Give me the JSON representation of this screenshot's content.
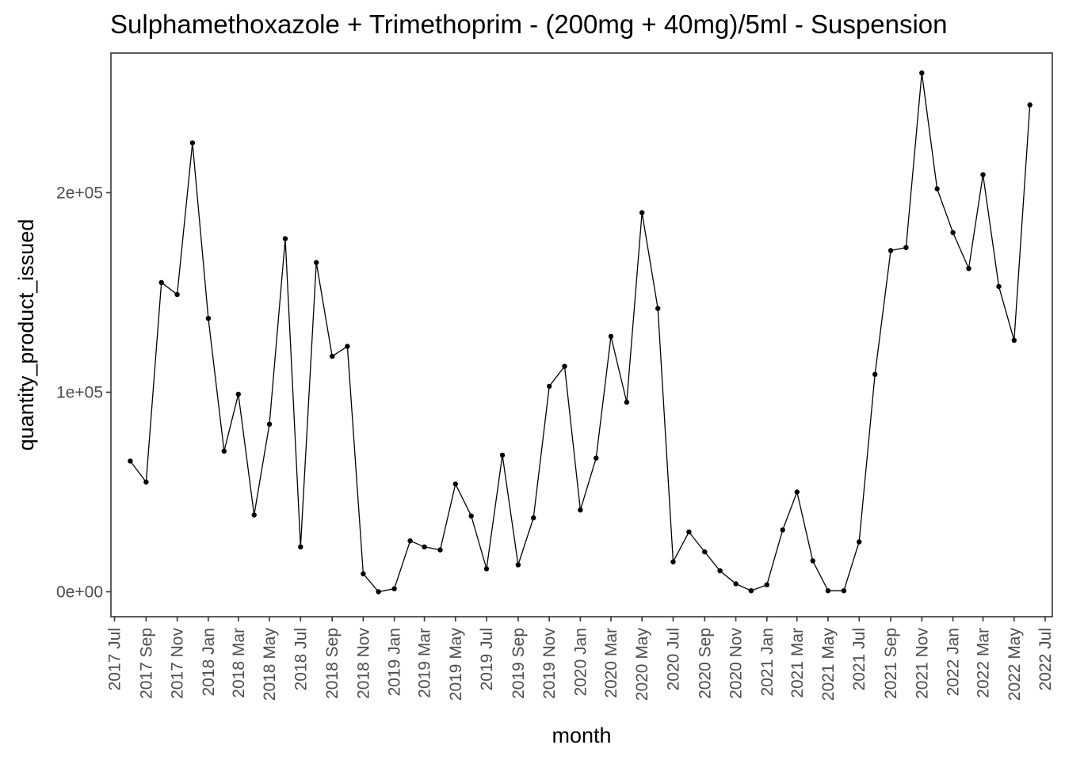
{
  "chart_data": {
    "type": "line",
    "title": "Sulphamethoxazole + Trimethoprim - (200mg + 40mg)/5ml - Suspension",
    "xlabel": "month",
    "ylabel": "quantity_product_issued",
    "grid": false,
    "legend": "none",
    "colors": {
      "line": "#000000",
      "point": "#000000",
      "axis": "#333333",
      "tick_text": "#4d4d4d",
      "panel_border": "#333333"
    },
    "x_tick_labels": [
      "2017 Jul",
      "2017 Sep",
      "2017 Nov",
      "2018 Jan",
      "2018 Mar",
      "2018 May",
      "2018 Jul",
      "2018 Sep",
      "2018 Nov",
      "2019 Jan",
      "2019 Mar",
      "2019 May",
      "2019 Jul",
      "2019 Sep",
      "2019 Nov",
      "2020 Jan",
      "2020 Mar",
      "2020 May",
      "2020 Jul",
      "2020 Sep",
      "2020 Nov",
      "2021 Jan",
      "2021 Mar",
      "2021 May",
      "2021 Jul",
      "2021 Sep",
      "2021 Nov",
      "2022 Jan",
      "2022 Mar",
      "2022 May",
      "2022 Jul"
    ],
    "y_ticks": [
      {
        "value": 0,
        "label": "0e+00"
      },
      {
        "value": 100000,
        "label": "1e+05"
      },
      {
        "value": 200000,
        "label": "2e+05"
      }
    ],
    "ylim": [
      -12500,
      270000
    ],
    "xlim": [
      "2017-06-24",
      "2022-07-15"
    ],
    "series": [
      {
        "x": [
          "2017-08-01",
          "2017-09-01",
          "2017-10-01",
          "2017-11-01",
          "2017-12-01",
          "2018-01-01",
          "2018-02-01",
          "2018-03-01",
          "2018-04-01",
          "2018-05-01",
          "2018-06-01",
          "2018-07-01",
          "2018-08-01",
          "2018-09-01",
          "2018-10-01",
          "2018-11-01",
          "2018-12-01",
          "2019-01-01",
          "2019-02-01",
          "2019-03-01",
          "2019-04-01",
          "2019-05-01",
          "2019-06-01",
          "2019-07-01",
          "2019-08-01",
          "2019-09-01",
          "2019-10-01",
          "2019-11-01",
          "2019-12-01",
          "2020-01-01",
          "2020-02-01",
          "2020-03-01",
          "2020-04-01",
          "2020-05-01",
          "2020-06-01",
          "2020-07-01",
          "2020-08-01",
          "2020-09-01",
          "2020-10-01",
          "2020-11-01",
          "2020-12-01",
          "2021-01-01",
          "2021-02-01",
          "2021-03-01",
          "2021-04-01",
          "2021-05-01",
          "2021-06-01",
          "2021-07-01",
          "2021-08-01",
          "2021-09-01",
          "2021-10-01",
          "2021-11-01",
          "2021-12-01",
          "2022-01-01",
          "2022-02-01",
          "2022-03-01",
          "2022-04-01",
          "2022-05-01",
          "2022-06-01"
        ],
        "y": [
          65500,
          55000,
          155000,
          149000,
          225000,
          137000,
          70500,
          99000,
          38500,
          84000,
          177000,
          22500,
          165000,
          118000,
          123000,
          9000,
          0,
          1500,
          25500,
          22500,
          21000,
          54000,
          38000,
          11500,
          68500,
          13500,
          37000,
          103000,
          113000,
          41000,
          67000,
          128000,
          95000,
          190000,
          142000,
          15000,
          30000,
          20000,
          10500,
          4000,
          500,
          3500,
          31000,
          50000,
          15500,
          500,
          500,
          25000,
          109000,
          171000,
          172500,
          260000,
          202000,
          180000,
          162000,
          209000,
          153000,
          126000,
          244000
        ]
      }
    ]
  }
}
